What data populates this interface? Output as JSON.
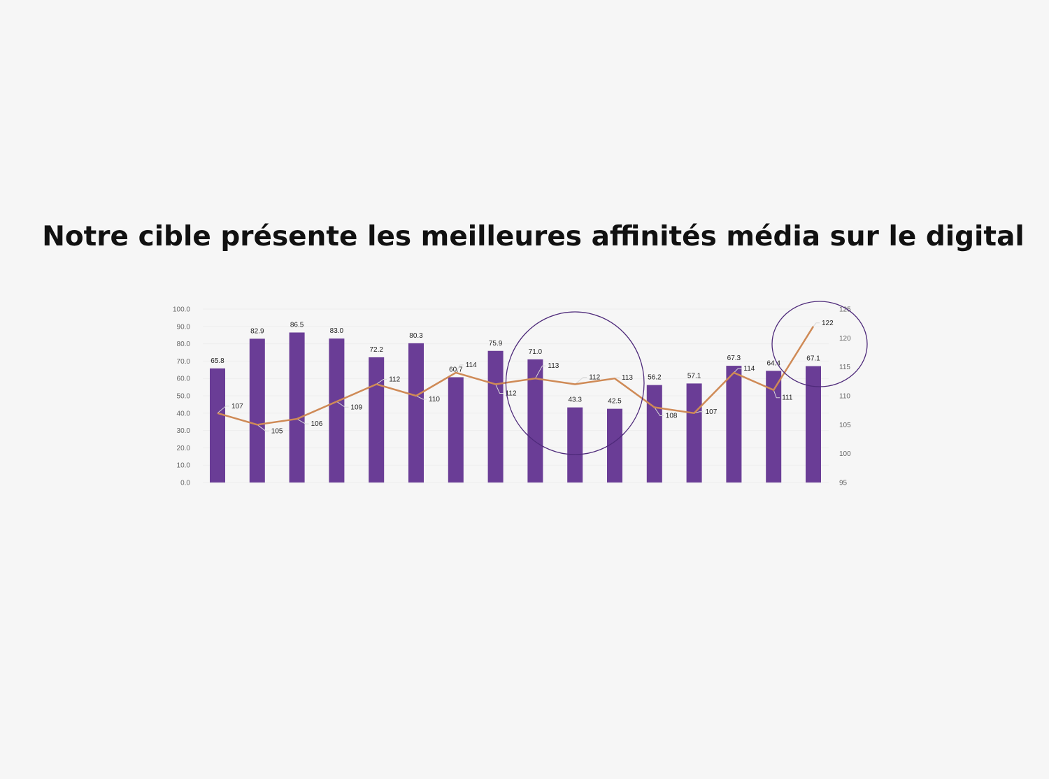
{
  "page": {
    "title": "Notre cible présente les meilleures affinités média sur le digital"
  },
  "colors": {
    "bar": "#6a3d96",
    "line": "#cf8a56",
    "highlight_circle": "#4e2a7a",
    "leader": "#d8d8d8",
    "gridline": "#eeeeee"
  },
  "chart_data": {
    "type": "bar",
    "categories": [
      "",
      "",
      "",
      "",
      "",
      "",
      "",
      "",
      "",
      "",
      "",
      "",
      "",
      "",
      "",
      ""
    ],
    "series": [
      {
        "type": "bar",
        "axis": "left",
        "values": [
          65.8,
          82.9,
          86.5,
          83.0,
          72.2,
          80.3,
          60.7,
          75.9,
          71.0,
          43.3,
          42.5,
          56.2,
          57.1,
          67.3,
          64.4,
          67.1
        ],
        "labels": [
          "65.8",
          "82.9",
          "86.5",
          "83.0",
          "72.2",
          "80.3",
          "60.7",
          "75.9",
          "71.0",
          "43.3",
          "42.5",
          "56.2",
          "57.1",
          "67.3",
          "64.4",
          "67.1"
        ]
      },
      {
        "type": "line",
        "axis": "right",
        "values": [
          107,
          105,
          106,
          109,
          112,
          110,
          114,
          112,
          113,
          112,
          113,
          108,
          107,
          114,
          111,
          122
        ],
        "labels": [
          "107",
          "105",
          "106",
          "109",
          "112",
          "110",
          "114",
          "112",
          "113",
          "112",
          "113",
          "108",
          "107",
          "114",
          "111",
          "122"
        ]
      }
    ],
    "y_left": {
      "range": [
        0,
        100
      ],
      "ticks": [
        "0.0",
        "10.0",
        "20.0",
        "30.0",
        "40.0",
        "50.0",
        "60.0",
        "70.0",
        "80.0",
        "90.0",
        "100.0"
      ]
    },
    "y_right": {
      "range": [
        95,
        125
      ],
      "ticks": [
        "95",
        "100",
        "105",
        "110",
        "115",
        "120",
        "125"
      ]
    },
    "highlights": [
      {
        "category_from": 8,
        "category_to": 10,
        "note": "circle"
      },
      {
        "category_from": 15,
        "category_to": 15,
        "note": "circle"
      }
    ],
    "grid": "horizontal-faint",
    "legend": "none"
  }
}
